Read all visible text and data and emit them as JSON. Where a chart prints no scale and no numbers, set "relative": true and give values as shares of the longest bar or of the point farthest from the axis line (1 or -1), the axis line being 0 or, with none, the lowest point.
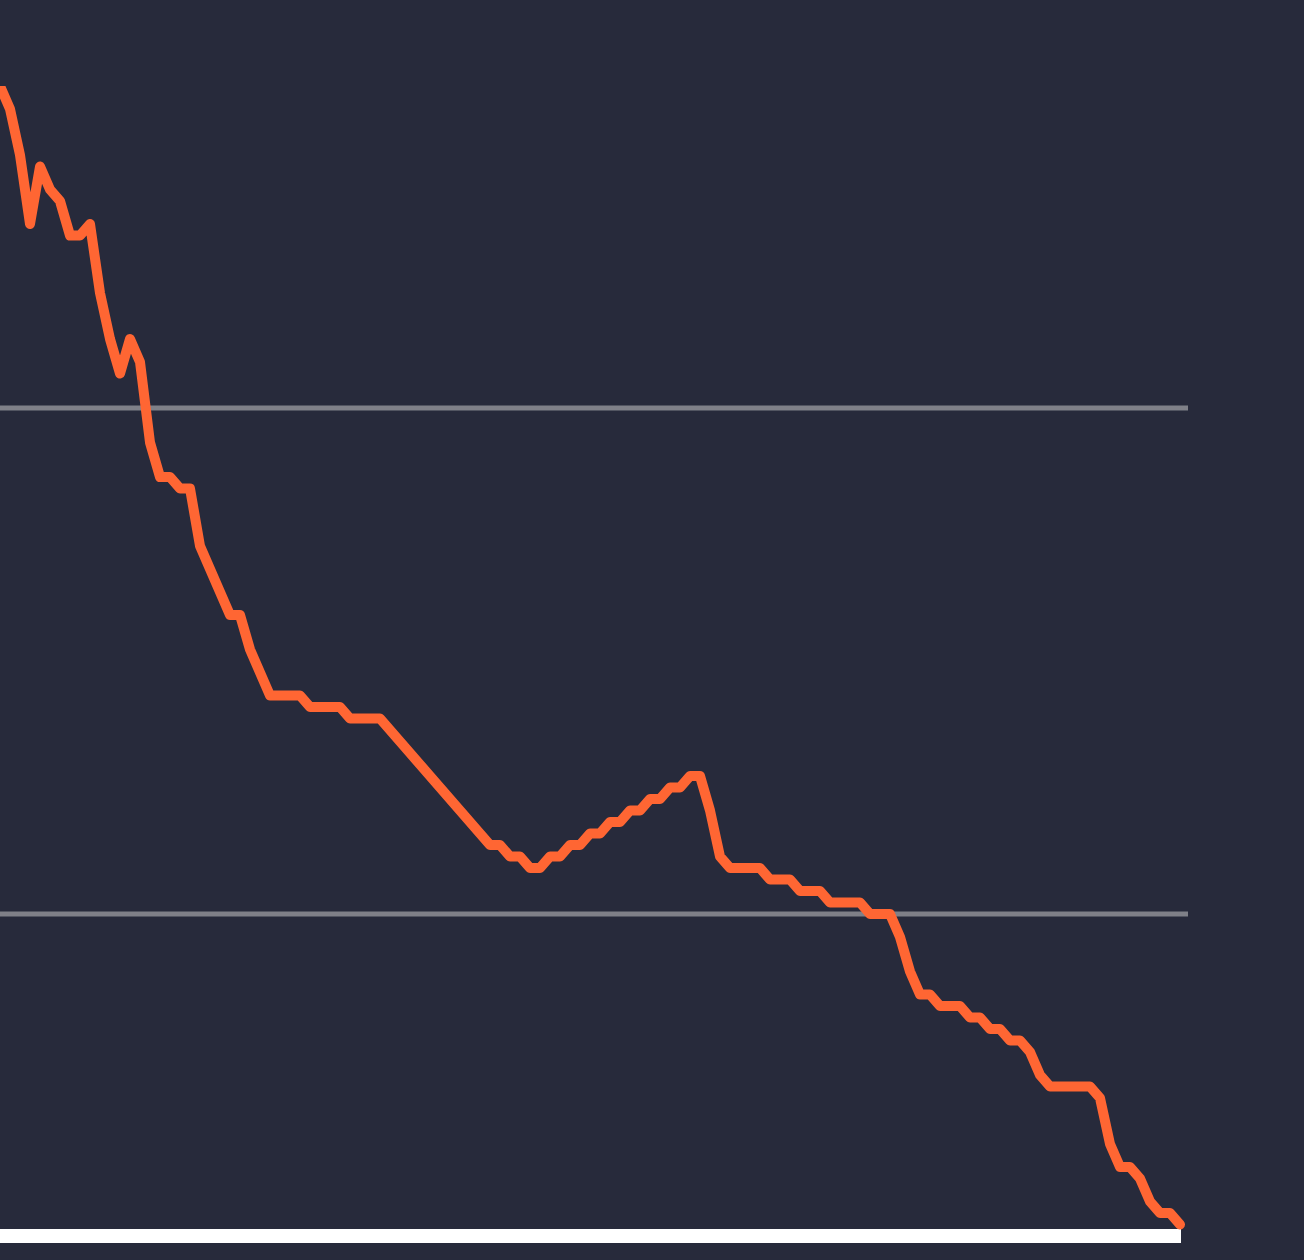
{
  "chart_data": {
    "type": "line",
    "relative": true,
    "tick_labels": false,
    "legend": false,
    "marker": "none",
    "line_style": "solid",
    "categories": [
      null,
      null,
      null,
      null,
      null,
      null,
      null,
      null,
      null,
      null,
      null,
      null,
      null,
      null,
      null,
      null,
      null,
      null,
      null,
      null,
      null,
      null,
      null,
      null,
      null,
      null,
      null,
      null,
      null,
      null,
      null,
      null,
      null,
      null,
      null,
      null,
      null,
      null,
      null,
      null,
      null,
      null,
      null,
      null,
      null,
      null,
      null,
      null,
      null,
      null,
      null,
      null,
      null,
      null,
      null,
      null,
      null,
      null,
      null,
      null,
      null,
      null,
      null,
      null,
      null,
      null,
      null,
      null,
      null,
      null,
      null,
      null,
      null,
      null,
      null,
      null,
      null,
      null,
      null,
      null,
      null,
      null,
      null,
      null,
      null,
      null,
      null,
      null,
      null,
      null,
      null,
      null,
      null,
      null,
      null,
      null,
      null,
      null,
      null,
      null,
      null,
      null,
      null,
      null,
      null,
      null,
      null,
      null,
      null,
      null,
      null,
      null,
      null,
      null,
      null,
      null,
      null,
      null,
      null
    ],
    "series": [
      {
        "color": "#ff6633",
        "values": [
          1.0,
          0.98,
          0.94,
          0.88,
          0.93,
          0.91,
          0.9,
          0.87,
          0.87,
          0.88,
          0.82,
          0.78,
          0.75,
          0.78,
          0.76,
          0.69,
          0.66,
          0.66,
          0.65,
          0.65,
          0.6,
          0.58,
          0.56,
          0.54,
          0.54,
          0.51,
          0.49,
          0.47,
          0.47,
          0.47,
          0.47,
          0.46,
          0.46,
          0.46,
          0.46,
          0.45,
          0.45,
          0.45,
          0.45,
          0.44,
          0.43,
          0.42,
          0.41,
          0.4,
          0.39,
          0.38,
          0.37,
          0.36,
          0.35,
          0.34,
          0.34,
          0.33,
          0.33,
          0.32,
          0.32,
          0.33,
          0.33,
          0.34,
          0.34,
          0.35,
          0.35,
          0.36,
          0.36,
          0.37,
          0.37,
          0.38,
          0.38,
          0.39,
          0.39,
          0.4,
          0.4,
          0.37,
          0.33,
          0.32,
          0.32,
          0.32,
          0.32,
          0.31,
          0.31,
          0.31,
          0.3,
          0.3,
          0.3,
          0.29,
          0.29,
          0.29,
          0.29,
          0.28,
          0.28,
          0.28,
          0.26,
          0.23,
          0.21,
          0.21,
          0.2,
          0.2,
          0.2,
          0.19,
          0.19,
          0.18,
          0.18,
          0.17,
          0.17,
          0.16,
          0.14,
          0.13,
          0.13,
          0.13,
          0.13,
          0.13,
          0.12,
          0.08,
          0.06,
          0.06,
          0.05,
          0.03,
          0.02,
          0.02,
          0.01
        ]
      }
    ],
    "ref_lines": [
      {
        "axis": "y",
        "value": 0.72,
        "color": "#7f8088"
      },
      {
        "axis": "y",
        "value": 0.28,
        "color": "#7f8088"
      }
    ]
  }
}
